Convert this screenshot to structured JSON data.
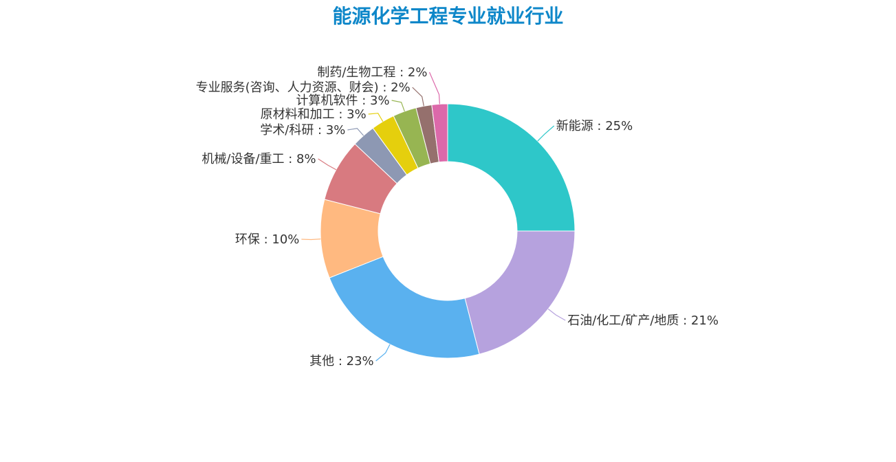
{
  "chart_data": {
    "type": "pie",
    "variant": "donut",
    "title": "能源化学工程专业就业行业",
    "title_color": "#0e87c9",
    "slices": [
      {
        "label": "新能源",
        "value": 25,
        "color": "#2ec7c9"
      },
      {
        "label": "石油/化工/矿产/地质",
        "value": 21,
        "color": "#b6a2de"
      },
      {
        "label": "其他",
        "value": 23,
        "color": "#5ab1ef"
      },
      {
        "label": "环保",
        "value": 10,
        "color": "#ffb980"
      },
      {
        "label": "机械/设备/重工",
        "value": 8,
        "color": "#d87a80"
      },
      {
        "label": "学术/科研",
        "value": 3,
        "color": "#8d98b3"
      },
      {
        "label": "原材料和加工",
        "value": 3,
        "color": "#e5cf0d"
      },
      {
        "label": "计算机软件",
        "value": 3,
        "color": "#97b552"
      },
      {
        "label": "专业服务(咨询、人力资源、财会)",
        "value": 2,
        "color": "#95706d"
      },
      {
        "label": "制药/生物工程",
        "value": 2,
        "color": "#dc69aa"
      }
    ],
    "value_suffix": "%",
    "label_separator": " : "
  }
}
